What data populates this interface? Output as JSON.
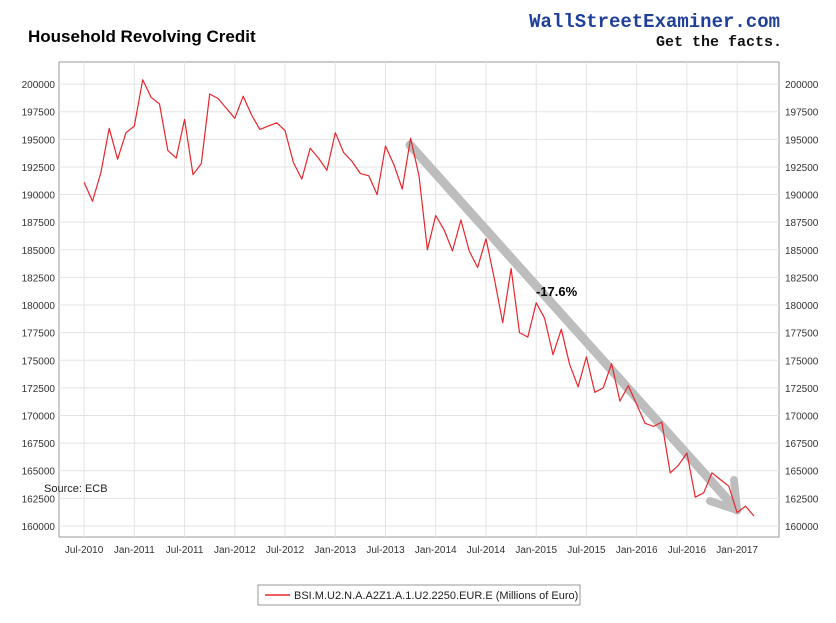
{
  "brand": {
    "name": "WallStreetExaminer.com",
    "tagline": "Get the facts.",
    "color": "#1f3f9a"
  },
  "source_note": "Source: ECB",
  "annotation": "-17.6%",
  "colors": {
    "series": "#e8262c",
    "trend_arrow": "#bbbbbb",
    "grid": "#e3e3e3",
    "axis_text": "#333333"
  },
  "chart_data": {
    "type": "line",
    "title": "Household Revolving Credit",
    "xlabel": "",
    "ylabel": "",
    "grid": true,
    "legend_position": "bottom-center",
    "x_range": [
      "2010-04",
      "2017-06"
    ],
    "ylim": [
      159000,
      202000
    ],
    "y_ticks": [
      160000,
      162500,
      165000,
      167500,
      170000,
      172500,
      175000,
      177500,
      180000,
      182500,
      185000,
      187500,
      190000,
      192500,
      195000,
      197500,
      200000
    ],
    "x_ticks": [
      {
        "date": "2010-07",
        "label": "Jul-2010"
      },
      {
        "date": "2011-01",
        "label": "Jan-2011"
      },
      {
        "date": "2011-07",
        "label": "Jul-2011"
      },
      {
        "date": "2012-01",
        "label": "Jan-2012"
      },
      {
        "date": "2012-07",
        "label": "Jul-2012"
      },
      {
        "date": "2013-01",
        "label": "Jan-2013"
      },
      {
        "date": "2013-07",
        "label": "Jul-2013"
      },
      {
        "date": "2014-01",
        "label": "Jan-2014"
      },
      {
        "date": "2014-07",
        "label": "Jul-2014"
      },
      {
        "date": "2015-01",
        "label": "Jan-2015"
      },
      {
        "date": "2015-07",
        "label": "Jul-2015"
      },
      {
        "date": "2016-01",
        "label": "Jan-2016"
      },
      {
        "date": "2016-07",
        "label": "Jul-2016"
      },
      {
        "date": "2017-01",
        "label": "Jan-2017"
      }
    ],
    "series": [
      {
        "name": "BSI.M.U2.N.A.A2Z1.A.1.U2.2250.EUR.E (Millions of Euro)",
        "x": [
          "2010-07",
          "2010-08",
          "2010-09",
          "2010-10",
          "2010-11",
          "2010-12",
          "2011-01",
          "2011-02",
          "2011-03",
          "2011-04",
          "2011-05",
          "2011-06",
          "2011-07",
          "2011-08",
          "2011-09",
          "2011-10",
          "2011-11",
          "2011-12",
          "2012-01",
          "2012-02",
          "2012-03",
          "2012-04",
          "2012-05",
          "2012-06",
          "2012-07",
          "2012-08",
          "2012-09",
          "2012-10",
          "2012-11",
          "2012-12",
          "2013-01",
          "2013-02",
          "2013-03",
          "2013-04",
          "2013-05",
          "2013-06",
          "2013-07",
          "2013-08",
          "2013-09",
          "2013-10",
          "2013-11",
          "2013-12",
          "2014-01",
          "2014-02",
          "2014-03",
          "2014-04",
          "2014-05",
          "2014-06",
          "2014-07",
          "2014-08",
          "2014-09",
          "2014-10",
          "2014-11",
          "2014-12",
          "2015-01",
          "2015-02",
          "2015-03",
          "2015-04",
          "2015-05",
          "2015-06",
          "2015-07",
          "2015-08",
          "2015-09",
          "2015-10",
          "2015-11",
          "2015-12",
          "2016-01",
          "2016-02",
          "2016-03",
          "2016-04",
          "2016-05",
          "2016-06",
          "2016-07",
          "2016-08",
          "2016-09",
          "2016-10",
          "2016-11",
          "2016-12",
          "2017-01",
          "2017-02",
          "2017-03"
        ],
        "values": [
          191100,
          189400,
          192000,
          196000,
          193200,
          195600,
          196200,
          200400,
          198800,
          198200,
          194000,
          193300,
          196800,
          191800,
          192800,
          199100,
          198700,
          197800,
          196900,
          198900,
          197200,
          195900,
          196200,
          196500,
          195800,
          192900,
          191400,
          194200,
          193300,
          192200,
          195600,
          193800,
          193000,
          191900,
          191700,
          190000,
          194400,
          192700,
          190500,
          195100,
          191700,
          185000,
          188100,
          186800,
          184900,
          187700,
          184900,
          183400,
          186000,
          182400,
          178400,
          183300,
          177500,
          177100,
          180200,
          178800,
          175500,
          177800,
          174600,
          172600,
          175300,
          172100,
          172500,
          174700,
          171300,
          172700,
          171000,
          169300,
          169000,
          169400,
          164800,
          165500,
          166600,
          162600,
          163000,
          164800,
          164200,
          163600,
          161200,
          161800,
          160900
        ]
      }
    ]
  }
}
